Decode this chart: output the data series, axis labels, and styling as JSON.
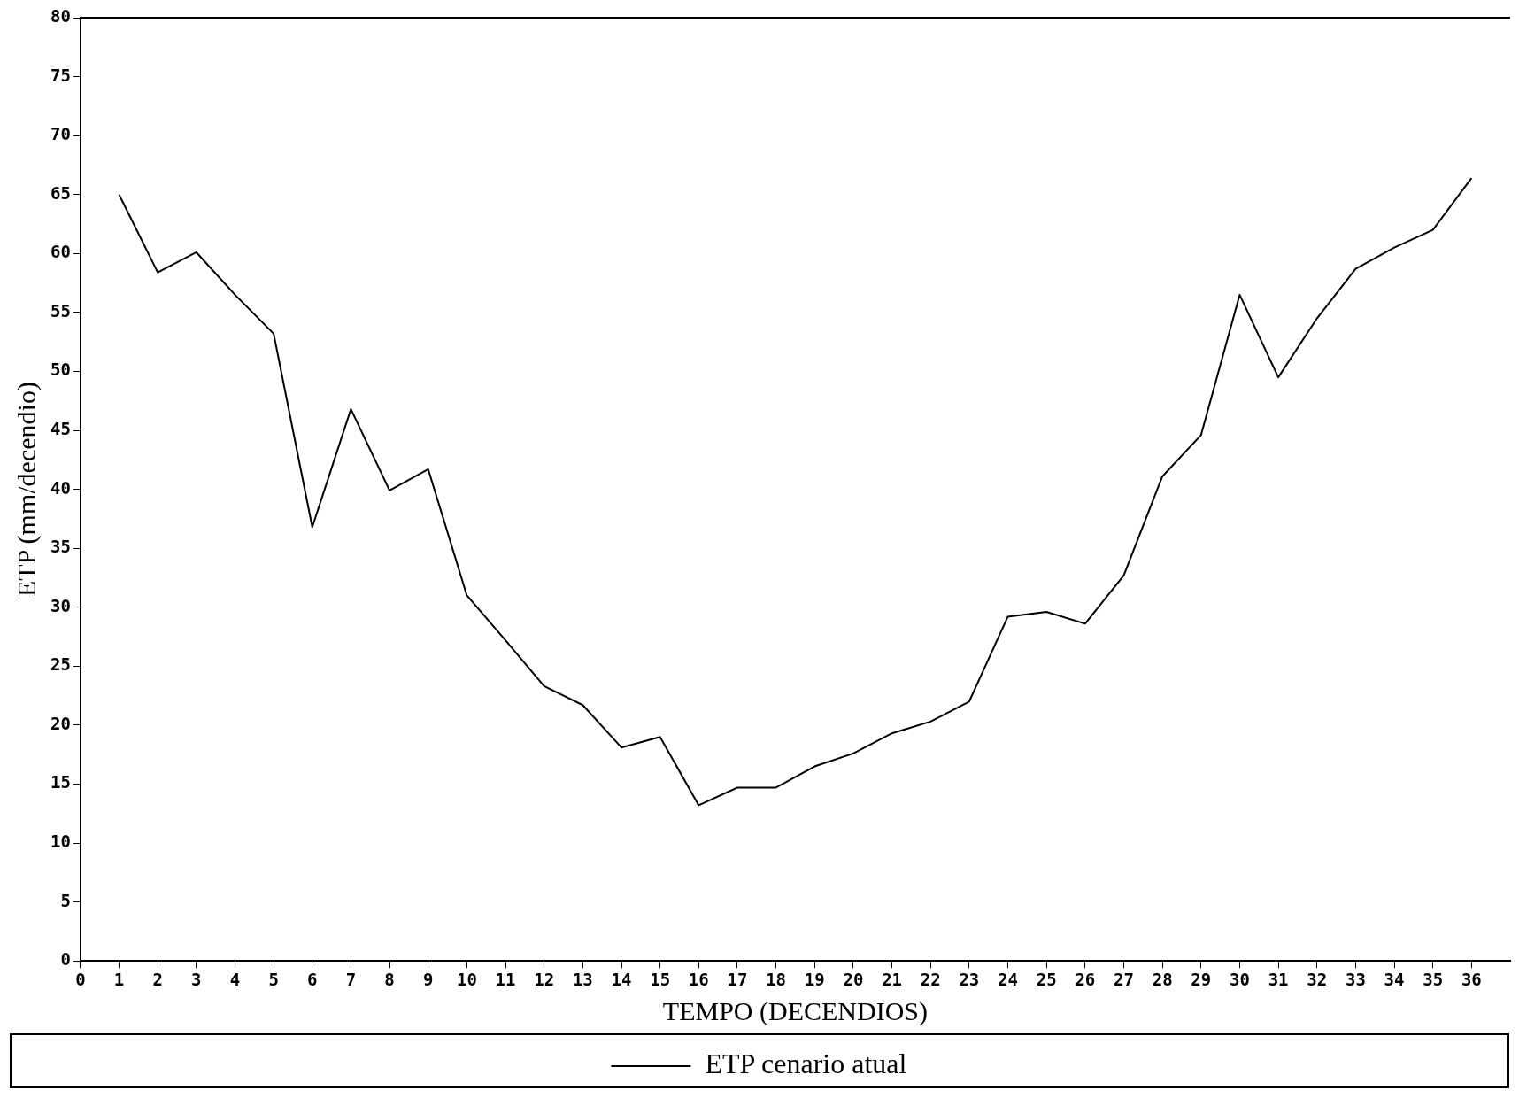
{
  "chart_data": {
    "type": "line",
    "xlabel": "TEMPO (DECENDIOS)",
    "ylabel": "ETP (mm/decendio)",
    "x": [
      1,
      2,
      3,
      4,
      5,
      6,
      7,
      8,
      9,
      10,
      11,
      12,
      13,
      14,
      15,
      16,
      17,
      18,
      19,
      20,
      21,
      22,
      23,
      24,
      25,
      26,
      27,
      28,
      29,
      30,
      31,
      32,
      33,
      34,
      35,
      36
    ],
    "series": [
      {
        "name": "ETP cenario atual",
        "color": "#000000",
        "values": [
          65,
          58.4,
          60.1,
          56.5,
          53.2,
          36.8,
          46.8,
          39.9,
          41.7,
          31,
          27.2,
          23.3,
          21.7,
          18.1,
          19,
          13.2,
          14.7,
          14.7,
          16.5,
          17.6,
          19.3,
          20.3,
          22,
          29.2,
          29.6,
          28.6,
          32.7,
          41.1,
          44.6,
          56.5,
          49.5,
          54.5,
          58.7,
          60.5,
          62,
          66.4
        ]
      }
    ],
    "xlim": [
      0,
      37
    ],
    "xticks": [
      0,
      1,
      2,
      3,
      4,
      5,
      6,
      7,
      8,
      9,
      10,
      11,
      12,
      13,
      14,
      15,
      16,
      17,
      18,
      19,
      20,
      21,
      22,
      23,
      24,
      25,
      26,
      27,
      28,
      29,
      30,
      31,
      32,
      33,
      34,
      35,
      36
    ],
    "ylim": [
      0,
      80
    ],
    "yticks": [
      0,
      5,
      10,
      15,
      20,
      25,
      30,
      35,
      40,
      45,
      50,
      55,
      60,
      65,
      70,
      75,
      80
    ],
    "grid": false,
    "legend": "bottom",
    "marker": "none",
    "line_style": "solid"
  }
}
